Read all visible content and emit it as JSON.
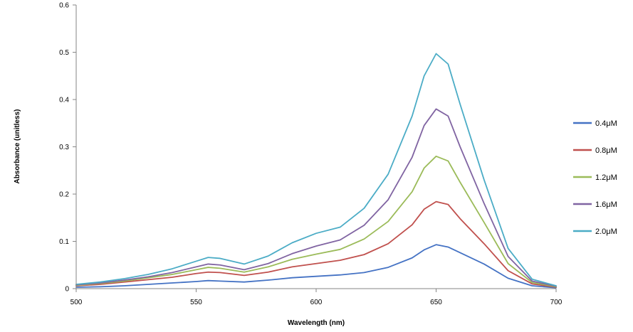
{
  "chart_data": {
    "type": "line",
    "title": "",
    "xlabel": "Wavelength (nm)",
    "ylabel": "Absorbance (unitless)",
    "xlim": [
      500,
      700
    ],
    "ylim": [
      0,
      0.6
    ],
    "x_ticks": [
      500,
      550,
      600,
      650,
      700
    ],
    "x_tick_labels": [
      "500",
      "550",
      "600",
      "650",
      "700"
    ],
    "y_ticks": [
      0,
      0.1,
      0.2,
      0.3,
      0.4,
      0.5,
      0.6
    ],
    "y_tick_labels": [
      "0",
      "0.1",
      "0.2",
      "0.3",
      "0.4",
      "0.5",
      "0.6"
    ],
    "grid": false,
    "legend_position": "right",
    "x": [
      500,
      510,
      520,
      530,
      540,
      550,
      555,
      560,
      570,
      580,
      590,
      600,
      610,
      620,
      630,
      640,
      645,
      650,
      655,
      660,
      670,
      680,
      690,
      700
    ],
    "series": [
      {
        "name": "0.4μM",
        "color": "#4472C4",
        "values": [
          0.003,
          0.004,
          0.006,
          0.009,
          0.012,
          0.015,
          0.017,
          0.016,
          0.014,
          0.018,
          0.023,
          0.026,
          0.029,
          0.034,
          0.045,
          0.065,
          0.082,
          0.093,
          0.088,
          0.076,
          0.052,
          0.022,
          0.006,
          0.002
        ]
      },
      {
        "name": "0.8μM",
        "color": "#C0504D",
        "values": [
          0.006,
          0.009,
          0.014,
          0.019,
          0.024,
          0.032,
          0.035,
          0.034,
          0.028,
          0.035,
          0.046,
          0.053,
          0.06,
          0.072,
          0.095,
          0.135,
          0.168,
          0.184,
          0.178,
          0.148,
          0.095,
          0.038,
          0.01,
          0.003
        ]
      },
      {
        "name": "1.2μM",
        "color": "#9BBB59",
        "values": [
          0.007,
          0.011,
          0.016,
          0.023,
          0.03,
          0.04,
          0.045,
          0.043,
          0.035,
          0.046,
          0.062,
          0.073,
          0.083,
          0.105,
          0.142,
          0.205,
          0.255,
          0.28,
          0.27,
          0.225,
          0.14,
          0.053,
          0.013,
          0.004
        ]
      },
      {
        "name": "1.6μM",
        "color": "#8064A2",
        "values": [
          0.008,
          0.012,
          0.018,
          0.025,
          0.034,
          0.046,
          0.052,
          0.05,
          0.04,
          0.053,
          0.074,
          0.09,
          0.103,
          0.134,
          0.188,
          0.278,
          0.345,
          0.38,
          0.365,
          0.3,
          0.18,
          0.068,
          0.016,
          0.005
        ]
      },
      {
        "name": "2.0μM",
        "color": "#4BACC6",
        "values": [
          0.009,
          0.014,
          0.021,
          0.03,
          0.042,
          0.058,
          0.066,
          0.064,
          0.052,
          0.069,
          0.097,
          0.117,
          0.13,
          0.17,
          0.242,
          0.365,
          0.45,
          0.497,
          0.475,
          0.39,
          0.23,
          0.085,
          0.02,
          0.006
        ]
      }
    ]
  }
}
